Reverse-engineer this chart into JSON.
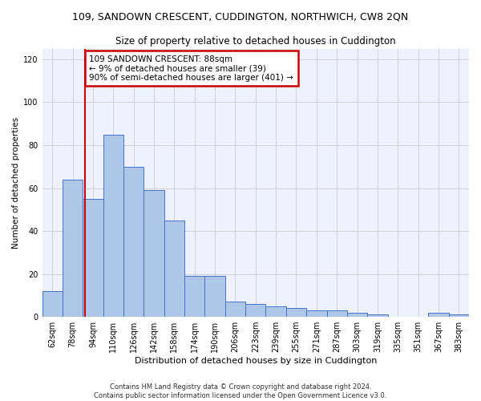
{
  "title": "109, SANDOWN CRESCENT, CUDDINGTON, NORTHWICH, CW8 2QN",
  "subtitle": "Size of property relative to detached houses in Cuddington",
  "xlabel": "Distribution of detached houses by size in Cuddington",
  "ylabel": "Number of detached properties",
  "categories": [
    "62sqm",
    "78sqm",
    "94sqm",
    "110sqm",
    "126sqm",
    "142sqm",
    "158sqm",
    "174sqm",
    "190sqm",
    "206sqm",
    "223sqm",
    "239sqm",
    "255sqm",
    "271sqm",
    "287sqm",
    "303sqm",
    "319sqm",
    "335sqm",
    "351sqm",
    "367sqm",
    "383sqm"
  ],
  "values": [
    12,
    64,
    55,
    85,
    70,
    59,
    45,
    19,
    19,
    7,
    6,
    5,
    4,
    3,
    3,
    2,
    1,
    0,
    0,
    2,
    1
  ],
  "bar_color": "#aec6e8",
  "bar_edge_color": "#4472c4",
  "annotation_text": "109 SANDOWN CRESCENT: 88sqm\n← 9% of detached houses are smaller (39)\n90% of semi-detached houses are larger (401) →",
  "annotation_box_color": "#ffffff",
  "annotation_box_edge_color": "#cc0000",
  "red_line_index": 1.625,
  "ylim": [
    0,
    125
  ],
  "yticks": [
    0,
    20,
    40,
    60,
    80,
    100,
    120
  ],
  "grid_color": "#cccccc",
  "background_color": "#eef2ff",
  "footer_line1": "Contains HM Land Registry data © Crown copyright and database right 2024.",
  "footer_line2": "Contains public sector information licensed under the Open Government Licence v3.0.",
  "title_fontsize": 9,
  "subtitle_fontsize": 8.5,
  "ylabel_fontsize": 7.5,
  "xlabel_fontsize": 8,
  "tick_fontsize": 7,
  "annotation_fontsize": 7.5,
  "footer_fontsize": 6
}
